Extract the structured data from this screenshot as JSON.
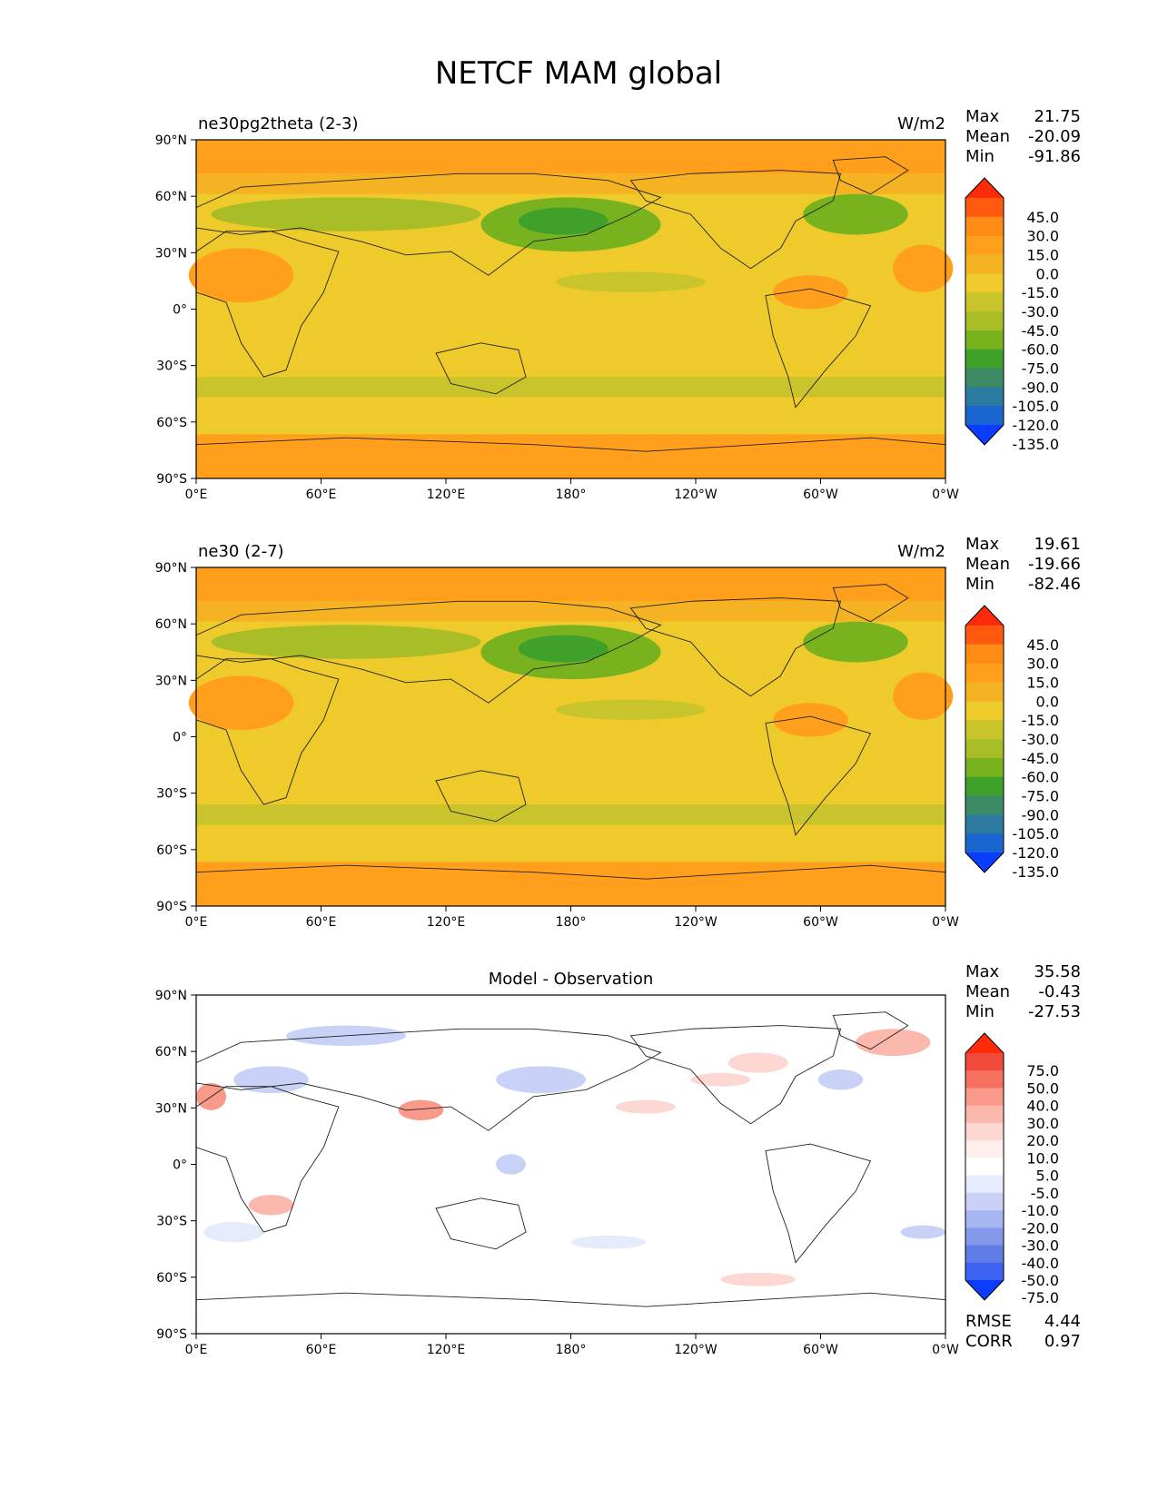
{
  "chart_data": {
    "type": "contour-map",
    "title": "NETCF MAM global",
    "lat_ticks": [
      "90°N",
      "60°N",
      "30°N",
      "0°",
      "30°S",
      "60°S",
      "90°S"
    ],
    "lon_ticks": [
      "0°E",
      "60°E",
      "120°E",
      "180°",
      "120°W",
      "60°W",
      "0°W"
    ],
    "panels": [
      {
        "name": "ne30pg2theta (2-3)",
        "units": "W/m2",
        "stats": {
          "max_label": "Max",
          "max": "21.75",
          "mean_label": "Mean",
          "mean": "-20.09",
          "min_label": "Min",
          "min": "-91.86"
        },
        "colorbar": {
          "labels": [
            "45.0",
            "30.0",
            "15.0",
            "0.0",
            "-15.0",
            "-30.0",
            "-45.0",
            "-60.0",
            "-75.0",
            "-90.0",
            "-105.0",
            "-120.0",
            "-135.0"
          ],
          "colors": [
            "#ff2a0a",
            "#ff5a0f",
            "#ff8a14",
            "#ff9f1c",
            "#f5b324",
            "#eeca2b",
            "#c9c42b",
            "#a9bd27",
            "#78b31f",
            "#3fa02a",
            "#3b8a63",
            "#2c7aa0",
            "#1a66d0",
            "#0b3dff"
          ]
        }
      },
      {
        "name": "ne30 (2-7)",
        "units": "W/m2",
        "stats": {
          "max_label": "Max",
          "max": "19.61",
          "mean_label": "Mean",
          "mean": "-19.66",
          "min_label": "Min",
          "min": "-82.46"
        },
        "colorbar": {
          "labels": [
            "45.0",
            "30.0",
            "15.0",
            "0.0",
            "-15.0",
            "-30.0",
            "-45.0",
            "-60.0",
            "-75.0",
            "-90.0",
            "-105.0",
            "-120.0",
            "-135.0"
          ],
          "colors": [
            "#ff2a0a",
            "#ff5a0f",
            "#ff8a14",
            "#ff9f1c",
            "#f5b324",
            "#eeca2b",
            "#c9c42b",
            "#a9bd27",
            "#78b31f",
            "#3fa02a",
            "#3b8a63",
            "#2c7aa0",
            "#1a66d0",
            "#0b3dff"
          ]
        }
      },
      {
        "name": "Model - Observation",
        "stats": {
          "max_label": "Max",
          "max": "35.58",
          "mean_label": "Mean",
          "mean": "-0.43",
          "min_label": "Min",
          "min": "-27.53"
        },
        "metrics": {
          "rmse_label": "RMSE",
          "rmse": "4.44",
          "corr_label": "CORR",
          "corr": "0.97"
        },
        "colorbar": {
          "labels": [
            "75.0",
            "50.0",
            "40.0",
            "30.0",
            "20.0",
            "10.0",
            "5.0",
            "-5.0",
            "-10.0",
            "-20.0",
            "-30.0",
            "-40.0",
            "-50.0",
            "-75.0"
          ],
          "colors": [
            "#ff2a0a",
            "#f24a3a",
            "#f6705f",
            "#f9998a",
            "#fbb9ae",
            "#fdd8d2",
            "#fdefec",
            "#ffffff",
            "#e6ebfb",
            "#c8d2f6",
            "#a6b6f1",
            "#8399ec",
            "#5f7ce7",
            "#3d61f1",
            "#0b3dff"
          ]
        }
      }
    ]
  }
}
